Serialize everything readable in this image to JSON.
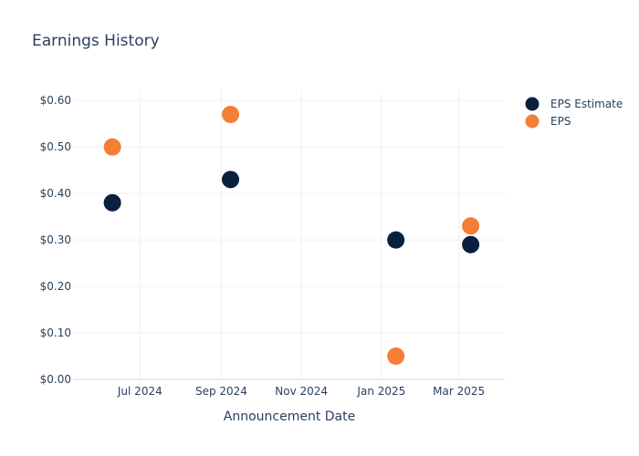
{
  "chart_data": {
    "type": "scatter",
    "title": "Earnings History",
    "xlabel": "Announcement Date",
    "ylabel": "",
    "ylim": [
      0,
      0.62
    ],
    "y_ticks": [
      0,
      0.1,
      0.2,
      0.3,
      0.4,
      0.5,
      0.6
    ],
    "y_tick_labels": [
      "$0.00",
      "$0.10",
      "$0.20",
      "$0.30",
      "$0.40",
      "$0.50",
      "$0.60"
    ],
    "x_ticks": [
      "2024-07-01",
      "2024-09-01",
      "2024-11-01",
      "2025-01-01",
      "2025-03-01"
    ],
    "x_tick_labels": [
      "Jul 2024",
      "Sep 2024",
      "Nov 2024",
      "Jan 2025",
      "Mar 2025"
    ],
    "xlim": [
      "2024-05-11",
      "2025-04-05"
    ],
    "legend_position": "top-right",
    "grid": true,
    "series": [
      {
        "name": "EPS Estimate",
        "color": "#0b1f3f",
        "points": [
          {
            "x": "2024-06-10",
            "y": 0.38
          },
          {
            "x": "2024-09-08",
            "y": 0.43
          },
          {
            "x": "2025-01-12",
            "y": 0.3
          },
          {
            "x": "2025-03-10",
            "y": 0.29
          }
        ]
      },
      {
        "name": "EPS",
        "color": "#f47e35",
        "points": [
          {
            "x": "2024-06-10",
            "y": 0.5
          },
          {
            "x": "2024-09-08",
            "y": 0.57
          },
          {
            "x": "2025-01-12",
            "y": 0.05
          },
          {
            "x": "2025-03-10",
            "y": 0.33
          }
        ]
      }
    ]
  }
}
